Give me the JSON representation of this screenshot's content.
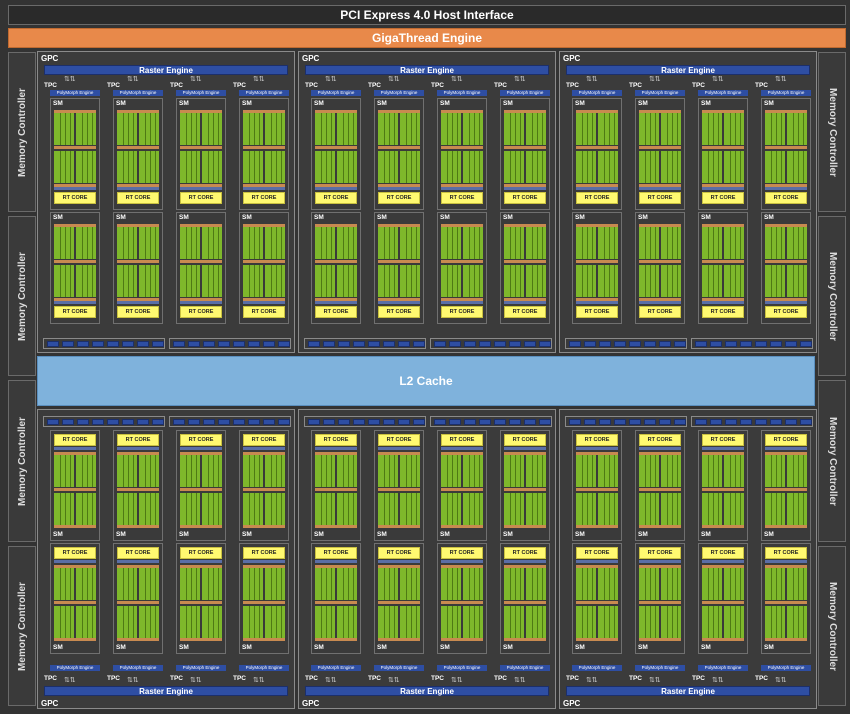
{
  "host_interface": "PCI Express 4.0 Host Interface",
  "gigathread": "GigaThread Engine",
  "l2_cache": "L2 Cache",
  "memory_controller": "Memory Controller",
  "gpc_label": "GPC",
  "raster_engine": "Raster Engine",
  "tpc_label": "TPC",
  "polymorph_engine": "PolyMorph Engine",
  "sm_label": "SM",
  "rt_core": "RT CORE",
  "colors": {
    "background": "#333333",
    "gigathread": "#e8894a",
    "l2": "#7fb2dc",
    "raster": "#2e4ea3",
    "cuda_core": "#7eb82b",
    "rt_core": "#fff970",
    "texture_stripe": "#c88a50"
  },
  "layout_counts": {
    "gpcs": 6,
    "tpcs_per_gpc": 4,
    "sms_per_tpc": 2,
    "memory_controllers": 8
  }
}
